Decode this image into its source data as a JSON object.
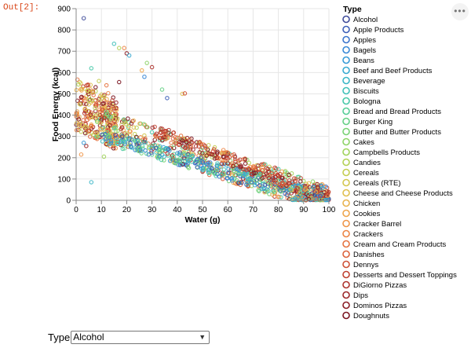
{
  "cell": {
    "prompt": "Out[2]:",
    "more_icon": "ellipsis-icon",
    "more_label": "•••"
  },
  "chart_data": {
    "type": "scatter",
    "xlabel": "Water (g)",
    "ylabel": "Food Energy (kcal)",
    "xlim": [
      0,
      100
    ],
    "ylim": [
      0,
      900
    ],
    "x_ticks": [
      "0",
      "10",
      "20",
      "30",
      "40",
      "50",
      "60",
      "70",
      "80",
      "90",
      "100"
    ],
    "y_ticks": [
      "0",
      "100",
      "200",
      "300",
      "400",
      "500",
      "600",
      "700",
      "800",
      "900"
    ],
    "grid": true,
    "legend_title": "Type",
    "legend_placement": "right",
    "marker": "hollow-circle",
    "series": [
      {
        "name": "Alcohol",
        "color": "#3e4a99"
      },
      {
        "name": "Apple Products",
        "color": "#3d5fb8"
      },
      {
        "name": "Apples",
        "color": "#3a74cc"
      },
      {
        "name": "Bagels",
        "color": "#3787d6"
      },
      {
        "name": "Beans",
        "color": "#3699d6"
      },
      {
        "name": "Beef and Beef Products",
        "color": "#38a9d0"
      },
      {
        "name": "Beverage",
        "color": "#3bb6c6"
      },
      {
        "name": "Biscuits",
        "color": "#40c0b8"
      },
      {
        "name": "Bologna",
        "color": "#48c8a8"
      },
      {
        "name": "Bread and Bread Products",
        "color": "#55cd97"
      },
      {
        "name": "Burger King",
        "color": "#66d086"
      },
      {
        "name": "Butter and Butter Products",
        "color": "#79d275"
      },
      {
        "name": "Cakes",
        "color": "#8dd367"
      },
      {
        "name": "Campbells Products",
        "color": "#a0d35c"
      },
      {
        "name": "Candies",
        "color": "#b3d155"
      },
      {
        "name": "Cereals",
        "color": "#c4cd51"
      },
      {
        "name": "Cereals (RTE)",
        "color": "#d3c74f"
      },
      {
        "name": "Cheese and Cheese Products",
        "color": "#dfbf4e"
      },
      {
        "name": "Chicken",
        "color": "#e8b34d"
      },
      {
        "name": "Cookies",
        "color": "#eea54b"
      },
      {
        "name": "Cracker Barrel",
        "color": "#ef9548"
      },
      {
        "name": "Crackers",
        "color": "#ec8444"
      },
      {
        "name": "Cream and Cream Products",
        "color": "#e5723f"
      },
      {
        "name": "Danishes",
        "color": "#db613a"
      },
      {
        "name": "Dennys",
        "color": "#ce5035"
      },
      {
        "name": "Desserts and Dessert Toppings",
        "color": "#bf4030"
      },
      {
        "name": "DiGiorno Pizzas",
        "color": "#ad322c"
      },
      {
        "name": "Dips",
        "color": "#9b2628"
      },
      {
        "name": "Dominos Pizzas",
        "color": "#891c24"
      },
      {
        "name": "Doughnuts",
        "color": "#7a1420"
      }
    ]
  },
  "filter": {
    "label": "Type",
    "selected": "Alcohol",
    "chevron_icon": "chevron-down-icon"
  }
}
